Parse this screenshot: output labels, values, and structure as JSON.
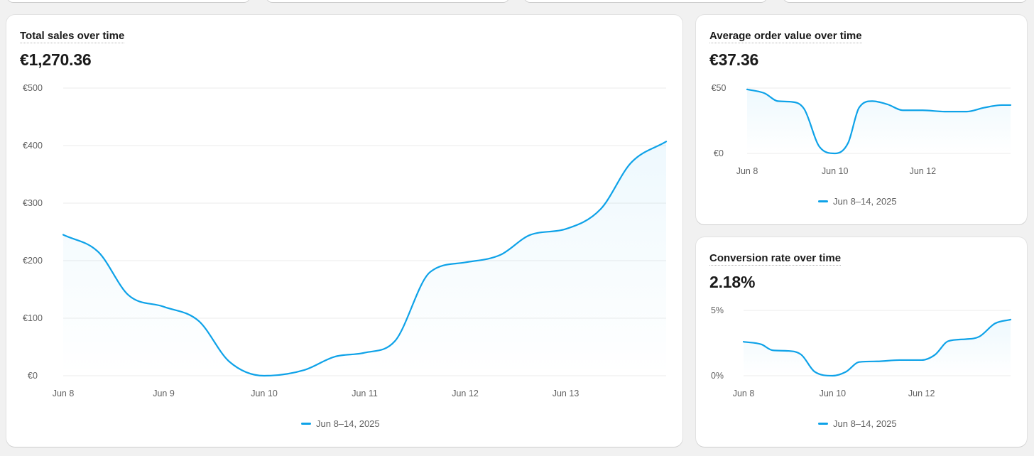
{
  "accent_color": "#0ea2e8",
  "top_cards": [
    {
      "name": "metric-card-1"
    },
    {
      "name": "metric-card-2"
    },
    {
      "name": "metric-card-3"
    },
    {
      "name": "metric-card-4"
    }
  ],
  "cards": {
    "sales": {
      "title": "Total sales over time",
      "value": "€1,270.36",
      "legend": "Jun 8–14, 2025"
    },
    "aov": {
      "title": "Average order value over time",
      "value": "€37.36",
      "legend": "Jun 8–14, 2025"
    },
    "conversion": {
      "title": "Conversion rate over time",
      "value": "2.18%",
      "legend": "Jun 8–14, 2025"
    }
  },
  "chart_data": [
    {
      "id": "sales",
      "type": "line",
      "title": "Total sales over time",
      "series": [
        {
          "name": "Jun 8–14, 2025",
          "values": [
            245,
            120,
            0,
            40,
            197,
            255,
            407
          ]
        }
      ],
      "sample_points": [
        {
          "x": 0,
          "y": 245
        },
        {
          "x": 0.35,
          "y": 215
        },
        {
          "x": 0.65,
          "y": 140
        },
        {
          "x": 1.0,
          "y": 120
        },
        {
          "x": 1.35,
          "y": 95
        },
        {
          "x": 1.65,
          "y": 25
        },
        {
          "x": 2.0,
          "y": 0
        },
        {
          "x": 2.4,
          "y": 10
        },
        {
          "x": 2.7,
          "y": 33
        },
        {
          "x": 3.0,
          "y": 40
        },
        {
          "x": 3.3,
          "y": 60
        },
        {
          "x": 3.65,
          "y": 180
        },
        {
          "x": 4.0,
          "y": 197
        },
        {
          "x": 4.35,
          "y": 210
        },
        {
          "x": 4.65,
          "y": 245
        },
        {
          "x": 5.0,
          "y": 255
        },
        {
          "x": 5.35,
          "y": 290
        },
        {
          "x": 5.65,
          "y": 370
        },
        {
          "x": 6.0,
          "y": 407
        }
      ],
      "x_ticks": [
        "Jun 8",
        "Jun 9",
        "Jun 10",
        "Jun 11",
        "Jun 12",
        "Jun 13"
      ],
      "x_tick_positions": [
        0,
        1,
        2,
        3,
        4,
        5
      ],
      "x_range": [
        0,
        6
      ],
      "y_ticks": [
        "€0",
        "€100",
        "€200",
        "€300",
        "€400",
        "€500"
      ],
      "y_tick_values": [
        0,
        100,
        200,
        300,
        400,
        500
      ],
      "ylim": [
        0,
        500
      ],
      "legend": "Jun 8–14, 2025"
    },
    {
      "id": "aov",
      "type": "line",
      "title": "Average order value over time",
      "series": [
        {
          "name": "Jun 8–14, 2025",
          "values": [
            49,
            39.5,
            0,
            39.5,
            33,
            32,
            37
          ]
        }
      ],
      "sample_points": [
        {
          "x": 0,
          "y": 49
        },
        {
          "x": 0.4,
          "y": 46
        },
        {
          "x": 0.7,
          "y": 40
        },
        {
          "x": 1.0,
          "y": 39.5
        },
        {
          "x": 1.3,
          "y": 34
        },
        {
          "x": 1.65,
          "y": 5
        },
        {
          "x": 2.0,
          "y": 0
        },
        {
          "x": 2.3,
          "y": 8
        },
        {
          "x": 2.55,
          "y": 35
        },
        {
          "x": 2.85,
          "y": 40
        },
        {
          "x": 3.2,
          "y": 37.5
        },
        {
          "x": 3.55,
          "y": 33
        },
        {
          "x": 4.0,
          "y": 33
        },
        {
          "x": 4.5,
          "y": 32
        },
        {
          "x": 5.0,
          "y": 32
        },
        {
          "x": 5.4,
          "y": 35
        },
        {
          "x": 5.8,
          "y": 37
        },
        {
          "x": 6.0,
          "y": 37
        }
      ],
      "x_ticks": [
        "Jun 8",
        "Jun 10",
        "Jun 12"
      ],
      "x_tick_positions": [
        0,
        2,
        4
      ],
      "x_range": [
        0,
        6
      ],
      "y_ticks": [
        "€0",
        "€50"
      ],
      "y_tick_values": [
        0,
        50
      ],
      "ylim": [
        0,
        50
      ],
      "legend": "Jun 8–14, 2025"
    },
    {
      "id": "conversion",
      "type": "line",
      "title": "Conversion rate over time",
      "series": [
        {
          "name": "Jun 8–14, 2025",
          "values": [
            2.6,
            1.9,
            0,
            1.1,
            1.2,
            2.8,
            4.3
          ]
        }
      ],
      "sample_points": [
        {
          "x": 0,
          "y": 2.6
        },
        {
          "x": 0.4,
          "y": 2.4
        },
        {
          "x": 0.65,
          "y": 1.95
        },
        {
          "x": 1.0,
          "y": 1.9
        },
        {
          "x": 1.3,
          "y": 1.6
        },
        {
          "x": 1.6,
          "y": 0.3
        },
        {
          "x": 2.0,
          "y": 0
        },
        {
          "x": 2.3,
          "y": 0.3
        },
        {
          "x": 2.6,
          "y": 1.05
        },
        {
          "x": 3.0,
          "y": 1.1
        },
        {
          "x": 3.5,
          "y": 1.2
        },
        {
          "x": 4.0,
          "y": 1.2
        },
        {
          "x": 4.3,
          "y": 1.6
        },
        {
          "x": 4.6,
          "y": 2.65
        },
        {
          "x": 5.0,
          "y": 2.8
        },
        {
          "x": 5.3,
          "y": 3.0
        },
        {
          "x": 5.65,
          "y": 4.0
        },
        {
          "x": 6.0,
          "y": 4.3
        }
      ],
      "x_ticks": [
        "Jun 8",
        "Jun 10",
        "Jun 12"
      ],
      "x_tick_positions": [
        0,
        2,
        4
      ],
      "x_range": [
        0,
        6
      ],
      "y_ticks": [
        "0%",
        "5%"
      ],
      "y_tick_values": [
        0,
        5
      ],
      "ylim": [
        0,
        5
      ],
      "legend": "Jun 8–14, 2025"
    }
  ]
}
